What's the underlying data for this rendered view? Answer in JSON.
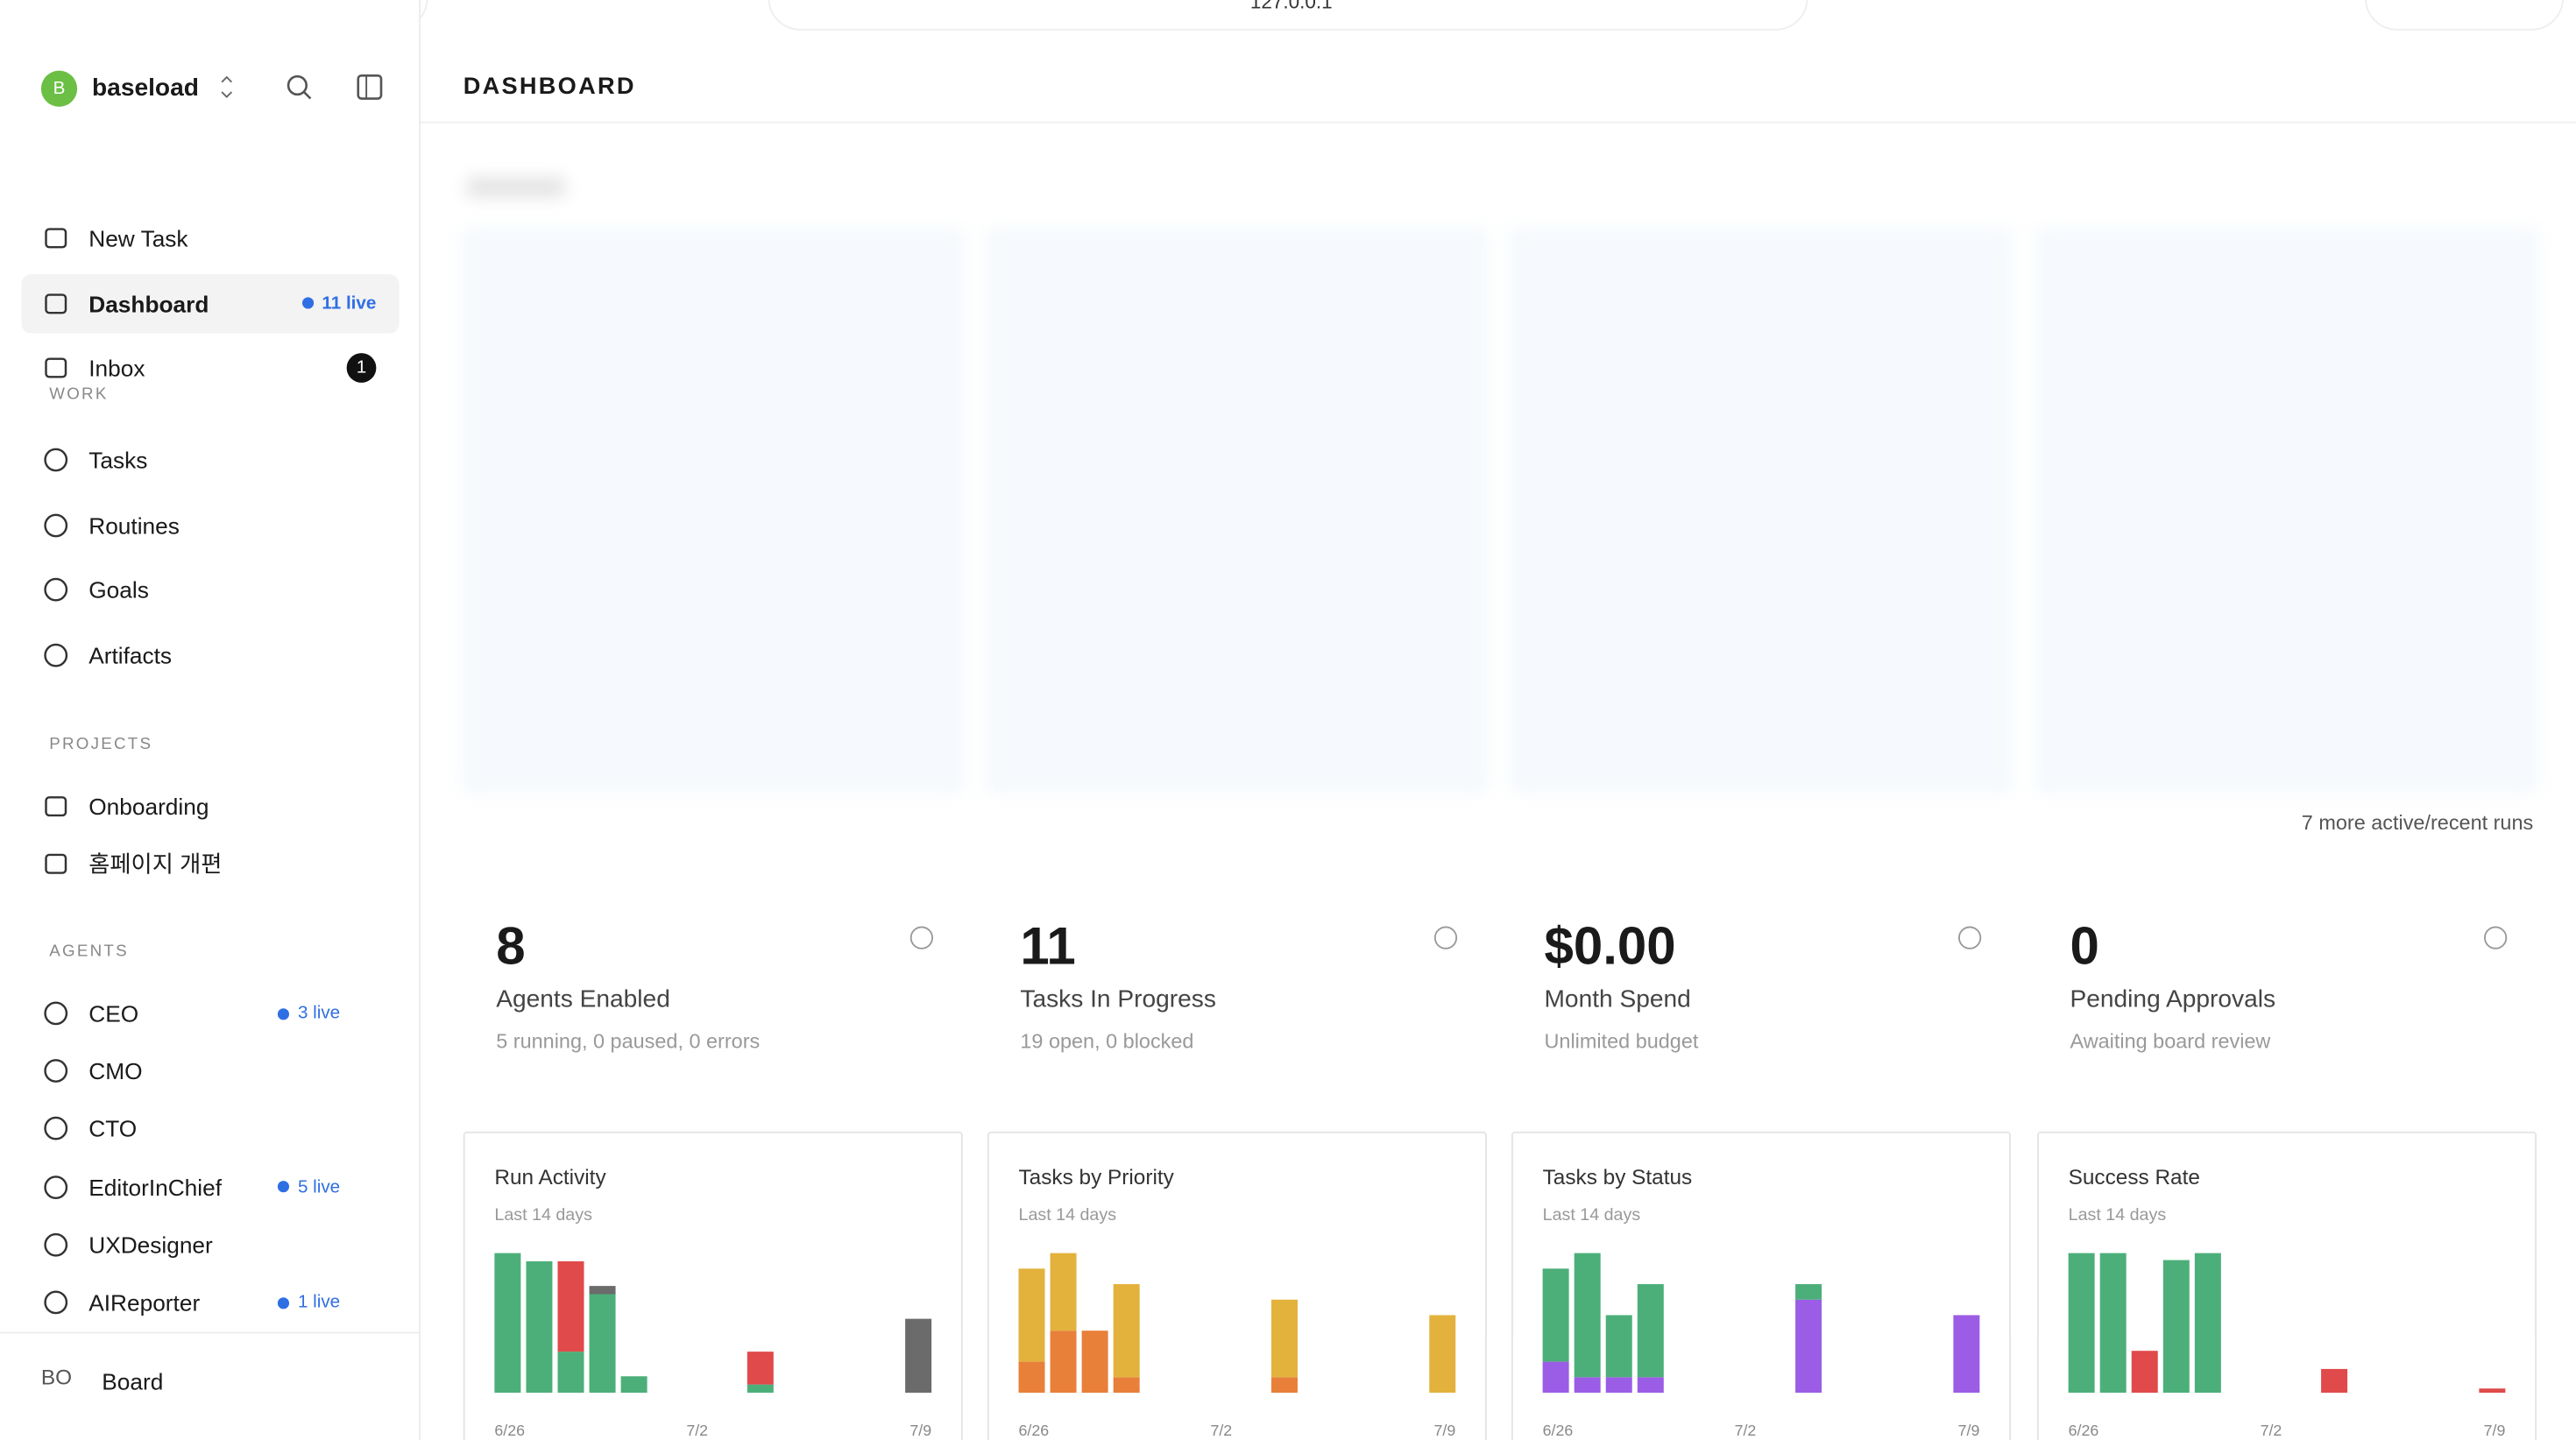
{
  "browser": {
    "url": "127.0.0.1"
  },
  "sidebar": {
    "workspace_initial": "B",
    "workspace": "baseload",
    "nav": [
      {
        "label": "New Task"
      },
      {
        "label": "Dashboard",
        "badge": "11 live"
      },
      {
        "label": "Inbox",
        "badge": "1"
      }
    ],
    "sections": [
      {
        "title": "WORK",
        "items": [
          "Tasks",
          "Routines",
          "Goals",
          "Artifacts"
        ]
      },
      {
        "title": "PROJECTS",
        "items": [
          "Onboarding",
          "홈페이지 개편"
        ]
      }
    ],
    "agents_title": "AGENTS",
    "agents": [
      {
        "name": "CEO",
        "live": "3 live"
      },
      {
        "name": "CMO"
      },
      {
        "name": "CTO"
      },
      {
        "name": "EditorInChief",
        "live": "5 live"
      },
      {
        "name": "UXDesigner"
      },
      {
        "name": "AIReporter",
        "live": "1 live"
      }
    ],
    "user": {
      "initials": "BO",
      "name": "Board"
    }
  },
  "header": {
    "title": "DASHBOARD"
  },
  "runs": {
    "more": "7 more active/recent runs"
  },
  "stats": [
    {
      "value": "8",
      "label": "Agents Enabled",
      "detail": "5 running, 0 paused, 0 errors"
    },
    {
      "value": "11",
      "label": "Tasks In Progress",
      "detail": "19 open, 0 blocked"
    },
    {
      "value": "$0.00",
      "label": "Month Spend",
      "detail": "Unlimited budget"
    },
    {
      "value": "0",
      "label": "Pending Approvals",
      "detail": "Awaiting board review"
    }
  ],
  "chart_data": [
    {
      "type": "bar",
      "stacked": true,
      "title": "Run Activity",
      "subtitle": "Last 14 days",
      "categories": [
        "6/26",
        null,
        null,
        null,
        null,
        null,
        "7/2",
        null,
        null,
        null,
        null,
        null,
        null,
        "7/9"
      ],
      "ylim": [
        0,
        17
      ],
      "series": [
        {
          "color": "#4caf7a",
          "values": [
            17,
            16,
            5,
            12,
            2,
            0,
            0,
            0,
            1,
            0,
            0,
            0,
            0,
            0
          ]
        },
        {
          "color": "#e04a4a",
          "values": [
            0,
            0,
            11,
            0,
            0,
            0,
            0,
            0,
            4,
            0,
            0,
            0,
            0,
            0
          ]
        },
        {
          "color": "#6b6b6b",
          "values": [
            0,
            0,
            0,
            1,
            0,
            0,
            0,
            0,
            0,
            0,
            0,
            0,
            0,
            9
          ]
        }
      ]
    },
    {
      "type": "bar",
      "stacked": true,
      "title": "Tasks by Priority",
      "subtitle": "Last 14 days",
      "categories": [
        "6/26",
        null,
        null,
        null,
        null,
        null,
        "7/2",
        null,
        null,
        null,
        null,
        null,
        null,
        "7/9"
      ],
      "ylim": [
        0,
        9
      ],
      "series": [
        {
          "color": "#e8803a",
          "values": [
            2,
            4,
            4,
            1,
            0,
            0,
            0,
            0,
            1,
            0,
            0,
            0,
            0,
            0
          ]
        },
        {
          "color": "#e3b23c",
          "values": [
            6,
            5,
            0,
            6,
            0,
            0,
            0,
            0,
            5,
            0,
            0,
            0,
            0,
            5
          ]
        }
      ]
    },
    {
      "type": "bar",
      "stacked": true,
      "title": "Tasks by Status",
      "subtitle": "Last 14 days",
      "categories": [
        "6/26",
        null,
        null,
        null,
        null,
        null,
        "7/2",
        null,
        null,
        null,
        null,
        null,
        null,
        "7/9"
      ],
      "ylim": [
        0,
        9
      ],
      "series": [
        {
          "color": "#9b5de5",
          "values": [
            2,
            1,
            1,
            1,
            0,
            0,
            0,
            0,
            6,
            0,
            0,
            0,
            0,
            5
          ]
        },
        {
          "color": "#4caf7a",
          "values": [
            6,
            8,
            4,
            6,
            0,
            0,
            0,
            0,
            1,
            0,
            0,
            0,
            0,
            0
          ]
        }
      ]
    },
    {
      "type": "bar",
      "stacked": true,
      "title": "Success Rate",
      "subtitle": "Last 14 days",
      "categories": [
        "6/26",
        null,
        null,
        null,
        null,
        null,
        "7/2",
        null,
        null,
        null,
        null,
        null,
        null,
        "7/9"
      ],
      "ylim": [
        0,
        100
      ],
      "series": [
        {
          "color": "#4caf7a",
          "values": [
            100,
            100,
            null,
            95,
            100,
            null,
            null,
            null,
            null,
            null,
            null,
            null,
            null,
            null
          ]
        },
        {
          "color": "#e04a4a",
          "values": [
            null,
            null,
            30,
            null,
            null,
            null,
            null,
            null,
            17,
            null,
            null,
            null,
            null,
            3
          ]
        }
      ]
    }
  ]
}
